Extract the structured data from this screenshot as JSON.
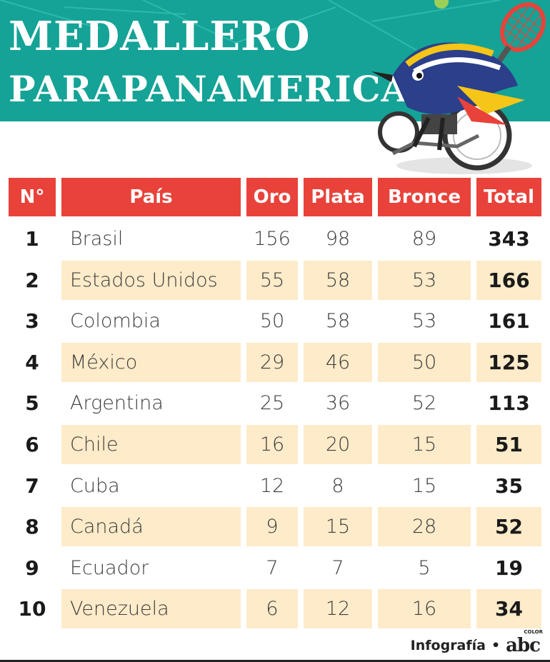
{
  "header": {
    "title_line1": "MEDALLERO",
    "title_line2": "PARAPANAMERICANO",
    "bg_color": "#14a396"
  },
  "table": {
    "columns": [
      "N°",
      "País",
      "Oro",
      "Plata",
      "Bronce",
      "Total"
    ],
    "header_color": "#e8423a",
    "shade_color": "#fdebc9",
    "rows": [
      {
        "rank": "1",
        "country": "Brasil",
        "gold": "156",
        "silver": "98",
        "bronze": "89",
        "total": "343"
      },
      {
        "rank": "2",
        "country": "Estados Unidos",
        "gold": "55",
        "silver": "58",
        "bronze": "53",
        "total": "166"
      },
      {
        "rank": "3",
        "country": "Colombia",
        "gold": "50",
        "silver": "58",
        "bronze": "53",
        "total": "161"
      },
      {
        "rank": "4",
        "country": "México",
        "gold": "29",
        "silver": "46",
        "bronze": "50",
        "total": "125"
      },
      {
        "rank": "5",
        "country": "Argentina",
        "gold": "25",
        "silver": "36",
        "bronze": "52",
        "total": "113"
      },
      {
        "rank": "6",
        "country": "Chile",
        "gold": "16",
        "silver": "20",
        "bronze": "15",
        "total": "51"
      },
      {
        "rank": "7",
        "country": "Cuba",
        "gold": "12",
        "silver": "8",
        "bronze": "15",
        "total": "35"
      },
      {
        "rank": "8",
        "country": "Canadá",
        "gold": "9",
        "silver": "15",
        "bronze": "28",
        "total": "52"
      },
      {
        "rank": "9",
        "country": "Ecuador",
        "gold": "7",
        "silver": "7",
        "bronze": "5",
        "total": "19"
      },
      {
        "rank": "10",
        "country": "Venezuela",
        "gold": "6",
        "silver": "12",
        "bronze": "16",
        "total": "34"
      }
    ]
  },
  "credit": {
    "label": "Infografía",
    "separator": "•",
    "logo_text": "abc",
    "logo_small": "COLOR"
  },
  "mascot": {
    "icon": "bird-wheelchair-tennis-mascot-icon"
  }
}
